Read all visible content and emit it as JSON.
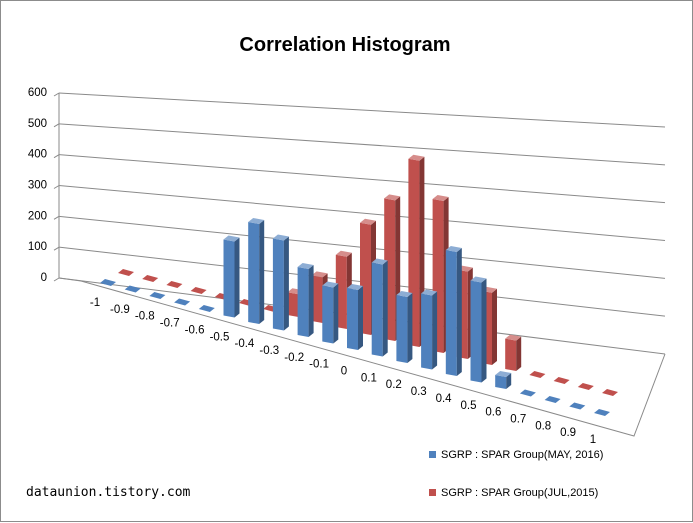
{
  "chart_data": {
    "type": "bar",
    "title": "Correlation Histogram",
    "xlabel": "",
    "ylabel": "",
    "categories": [
      "-1",
      "-0.9",
      "-0.8",
      "-0.7",
      "-0.6",
      "-0.5",
      "-0.4",
      "-0.3",
      "-0.2",
      "-0.1",
      "0",
      "0.1",
      "0.2",
      "0.3",
      "0.4",
      "0.5",
      "0.6",
      "0.7",
      "0.8",
      "0.9",
      "1"
    ],
    "y_ticks": [
      "0",
      "100",
      "200",
      "300",
      "400",
      "500",
      "600"
    ],
    "ylim": [
      0,
      600
    ],
    "grid": true,
    "legend_position": "bottom-right",
    "three_d": true,
    "series": [
      {
        "name": "SGRP : SPAR Group(MAY, 2016)",
        "color": "#4F81BD",
        "values": [
          0,
          0,
          0,
          0,
          0,
          190,
          250,
          225,
          170,
          140,
          150,
          230,
          165,
          185,
          310,
          250,
          30,
          0,
          0,
          0,
          0
        ]
      },
      {
        "name": "SGRP : SPAR Group(JUL,2015)",
        "color": "#C0504D",
        "values": [
          0,
          0,
          0,
          0,
          0,
          0,
          0,
          60,
          120,
          190,
          290,
          370,
          490,
          400,
          230,
          190,
          80,
          0,
          0,
          0,
          0
        ]
      }
    ]
  },
  "watermark": "dataunion.tistory.com"
}
